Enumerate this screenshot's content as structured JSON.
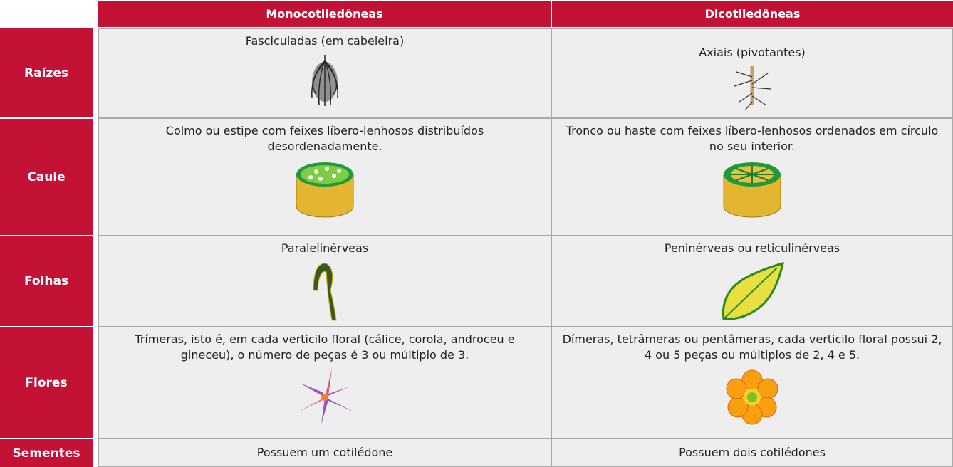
{
  "table": {
    "headers": [
      "Monocotiledôneas",
      "Dicotiledôneas"
    ],
    "rows": [
      {
        "label": "Raízes",
        "cells": [
          "Fasciculadas (em cabeleira)",
          "Axiais (pivotantes)"
        ]
      },
      {
        "label": "Caule",
        "cells": [
          "Colmo ou estipe com feixes líbero-lenhosos distribuídos desordenadamente.",
          "Tronco ou haste com feixes líbero-lenhosos ordenados em círculo no seu interior."
        ]
      },
      {
        "label": "Folhas",
        "cells": [
          "Paralelinérveas",
          "Peninérveas ou reticulinérveas"
        ]
      },
      {
        "label": "Flores",
        "cells": [
          "Trímeras, isto é, em cada verticilo floral (cálice, corola, androceu e gineceu), o número de peças é 3 ou múltiplo de 3.",
          "Dímeras, tetrâmeras ou pentâmeras, cada verticilo floral possui 2, 4 ou 5 peças ou múltiplos de 2, 4 e 5."
        ]
      },
      {
        "label": "Sementes",
        "cells": [
          "Possuem um cotilédone",
          "Possuem dois cotilédones"
        ]
      }
    ]
  }
}
